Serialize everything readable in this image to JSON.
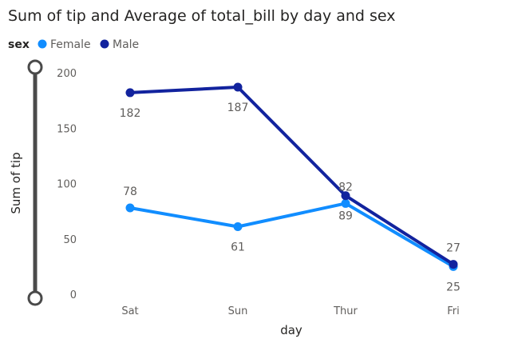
{
  "chart_data": {
    "type": "line",
    "title": "Sum of tip and Average of total_bill by day and sex",
    "legend_title": "sex",
    "legend_position": "top-left",
    "xlabel": "day",
    "ylabel": "Sum of tip",
    "categories": [
      "Sat",
      "Sun",
      "Thur",
      "Fri"
    ],
    "ylim": [
      0,
      200
    ],
    "yticks": [
      0,
      50,
      100,
      150,
      200
    ],
    "grid": false,
    "series": [
      {
        "name": "Female",
        "color": "#118DFF",
        "values": [
          78,
          61,
          82,
          25
        ],
        "labels": [
          "78",
          "61",
          "82",
          "25"
        ]
      },
      {
        "name": "Male",
        "color": "#12239E",
        "values": [
          182,
          187,
          89,
          27
        ],
        "labels": [
          "182",
          "187",
          "89",
          "27"
        ]
      }
    ]
  }
}
